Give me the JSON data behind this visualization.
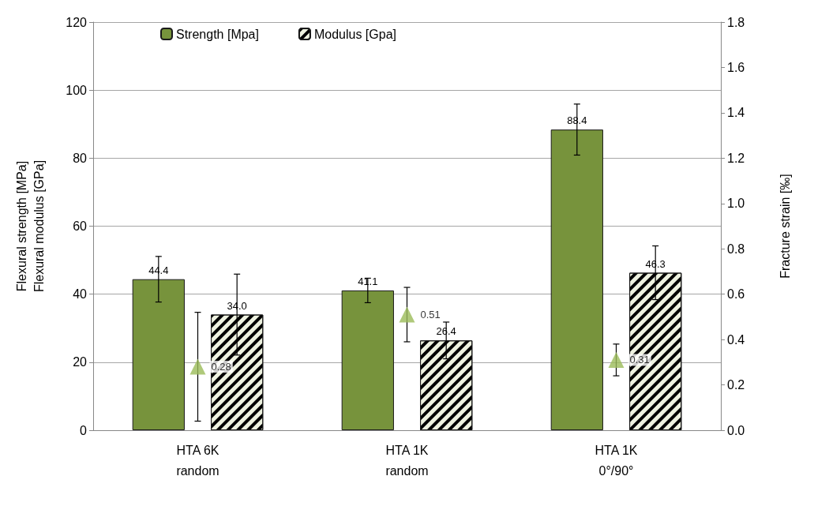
{
  "chart_data": {
    "type": "bar",
    "categories": [
      "HTA 6K\nrandom",
      "HTA 1K\nrandom",
      "HTA 1K\n0°/90°"
    ],
    "ylabel": "Flexural strength [MPa]\nFlexural modulus [GPa]",
    "y2label": "Fracture strain [‰]",
    "series": [
      {
        "name": "Strength [Mpa]",
        "color": "#77933c",
        "values": [
          44.4,
          41.1,
          88.4
        ],
        "errors": [
          6.7,
          3.6,
          7.5
        ],
        "value_labels": [
          "44.4",
          "41.1",
          "88.4"
        ]
      },
      {
        "name": "Modulus [Gpa]",
        "color": "#eef2e0",
        "values": [
          34.0,
          26.4,
          46.3
        ],
        "errors": [
          11.9,
          5.4,
          7.9
        ],
        "value_labels": [
          "34.0",
          "26.4",
          "46.3"
        ]
      },
      {
        "type": "scatter",
        "axis": "y2",
        "color": "#9bbb59",
        "marker": "triangle",
        "values": [
          0.28,
          0.51,
          0.31
        ],
        "errors": [
          0.24,
          0.12,
          0.07
        ],
        "value_labels": [
          "0.28",
          "0.51",
          "0.31"
        ]
      }
    ],
    "ylim": [
      0,
      120
    ],
    "yticks": [
      0,
      20,
      40,
      60,
      80,
      100,
      120
    ],
    "y2lim": [
      0,
      1.8
    ],
    "y2ticks": [
      {
        "value": 0,
        "label": "0.0"
      },
      {
        "value": 0.2,
        "label": "0.2"
      },
      {
        "value": 0.4,
        "label": "0.4"
      },
      {
        "value": 0.6,
        "label": "0.6"
      },
      {
        "value": 0.8,
        "label": "0.8"
      },
      {
        "value": 1.0,
        "label": "1.0"
      },
      {
        "value": 1.2,
        "label": "1.2"
      },
      {
        "value": 1.4,
        "label": "1.4"
      },
      {
        "value": 1.6,
        "label": "1.6"
      },
      {
        "value": 1.8,
        "label": "1.8"
      }
    ],
    "grid": "y",
    "legend": "top left"
  }
}
